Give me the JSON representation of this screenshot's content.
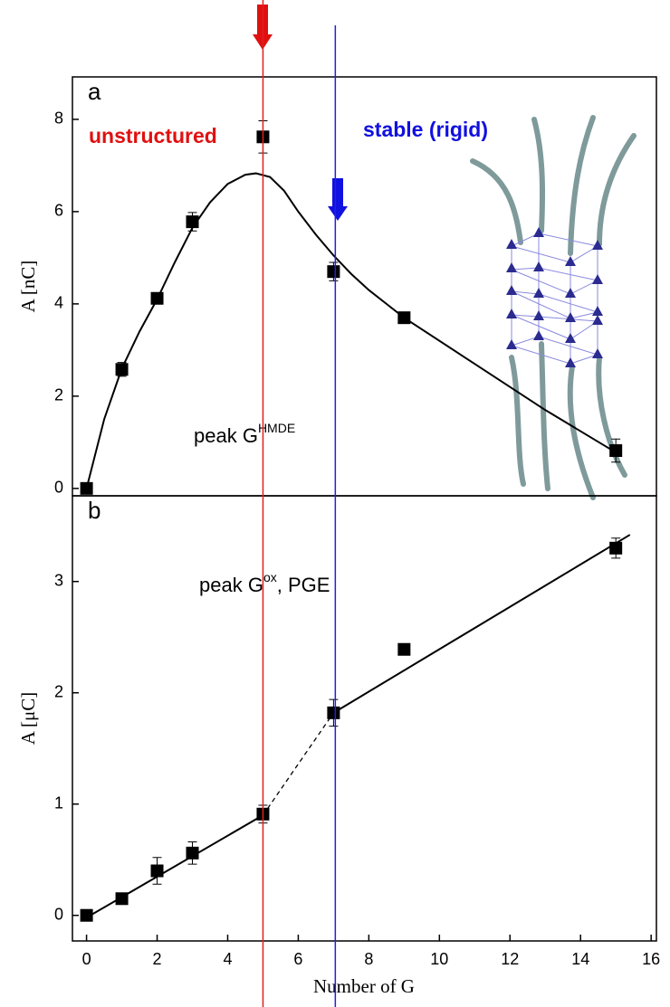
{
  "chart_data": [
    {
      "type": "scatter",
      "panel_label": "a",
      "ylabel": "A [nC]",
      "xlim": [
        -0.4,
        16.15
      ],
      "ylim": [
        -0.16,
        8.92
      ],
      "yticks": [
        0,
        2,
        4,
        6,
        8
      ],
      "series": [
        {
          "color": "#000000",
          "x": [
            0,
            1,
            2,
            3,
            5,
            7,
            9,
            15
          ],
          "values": [
            0,
            2.58,
            4.12,
            5.78,
            7.62,
            4.7,
            3.7,
            0.82
          ],
          "errors": [
            0.05,
            0.15,
            0.05,
            0.2,
            0.35,
            0.2,
            0.05,
            0.25
          ]
        }
      ],
      "fit": [
        {
          "x": [
            0,
            0.5,
            1,
            1.5,
            2,
            2.5,
            3,
            3.5,
            4,
            4.5,
            4.8,
            5.2,
            5.6,
            6,
            6.5,
            7,
            7.5,
            8,
            8.5,
            9,
            11,
            13,
            15
          ],
          "y": [
            0,
            1.5,
            2.6,
            3.4,
            4.1,
            4.9,
            5.65,
            6.2,
            6.6,
            6.8,
            6.83,
            6.75,
            6.45,
            6.0,
            5.5,
            5.05,
            4.65,
            4.3,
            4.0,
            3.7,
            2.7,
            1.7,
            0.78
          ],
          "style": "solid"
        }
      ],
      "annotations": [
        {
          "text": "unstructured",
          "color": "#e01010"
        },
        {
          "text": "stable (rigid)",
          "color": "#1010e0"
        },
        {
          "text": "peak G",
          "sup": "HMDE"
        }
      ],
      "guides": [
        {
          "x": 5,
          "color": "#e02020"
        },
        {
          "x": 7.05,
          "color": "#2020e0"
        }
      ]
    },
    {
      "type": "scatter",
      "panel_label": "b",
      "ylabel": "A [μC]",
      "xlabel": "Number of G",
      "xlim": [
        -0.4,
        16.15
      ],
      "ylim": [
        -0.23,
        3.77
      ],
      "yticks": [
        0,
        1,
        2,
        3
      ],
      "xticks": [
        0,
        2,
        4,
        6,
        8,
        10,
        12,
        14,
        16
      ],
      "series": [
        {
          "color": "#000000",
          "x": [
            0,
            1,
            2,
            3,
            5,
            7,
            9,
            15
          ],
          "values": [
            0,
            0.15,
            0.4,
            0.56,
            0.91,
            1.82,
            2.39,
            3.3
          ],
          "errors": [
            0.03,
            0.04,
            0.12,
            0.1,
            0.08,
            0.12,
            0.05,
            0.09
          ]
        }
      ],
      "fit": [
        {
          "x": [
            0,
            5
          ],
          "y": [
            -0.02,
            0.9
          ],
          "style": "solid"
        },
        {
          "x": [
            5,
            7
          ],
          "y": [
            0.9,
            1.82
          ],
          "style": "dashed"
        },
        {
          "x": [
            7,
            15.4
          ],
          "y": [
            1.82,
            3.42
          ],
          "style": "solid"
        }
      ],
      "annotations": [
        {
          "text": "peak G",
          "sup": "ox",
          "tail": ", PGE"
        }
      ]
    }
  ]
}
